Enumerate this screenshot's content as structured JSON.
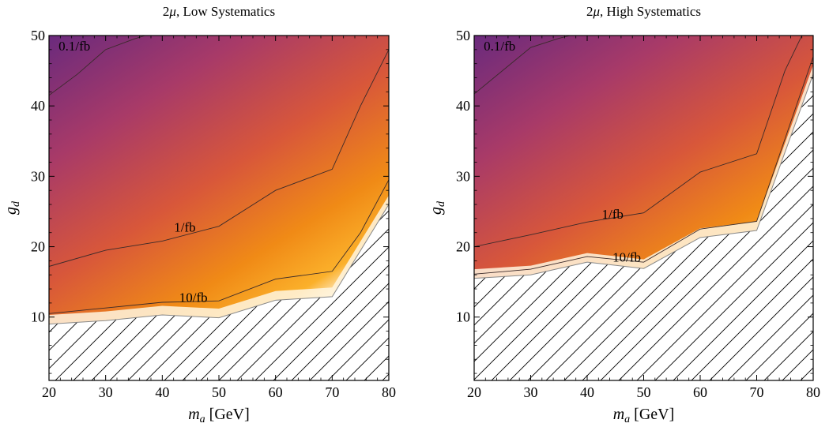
{
  "chart_data": [
    {
      "type": "heatmap",
      "title_base": "Low Systematics",
      "title_prefix": "2",
      "title_mu": "μ",
      "xlabel_var": "m",
      "xlabel_sub": "a",
      "xlabel_unit": "[GeV]",
      "ylabel_var": "g",
      "ylabel_sub": "d",
      "xlim": [
        20,
        80
      ],
      "ylim": [
        1,
        50
      ],
      "xticks": [
        20,
        30,
        40,
        50,
        60,
        70,
        80
      ],
      "yticks": [
        10,
        20,
        30,
        40,
        50
      ],
      "colors": [
        "#6a2a7d",
        "#a83a68",
        "#d8573a",
        "#f08a16",
        "#fbb02a",
        "#ffffff"
      ],
      "exclusion_boundary": [
        [
          20,
          9.0
        ],
        [
          30,
          9.5
        ],
        [
          40,
          10.3
        ],
        [
          50,
          9.9
        ],
        [
          60,
          12.4
        ],
        [
          70,
          12.9
        ],
        [
          80,
          26.0
        ]
      ],
      "contours": [
        {
          "label": "0.1/fb",
          "points": [
            [
              20,
              41.5
            ],
            [
              25,
              44.5
            ],
            [
              30,
              48
            ],
            [
              35,
              49.5
            ],
            [
              37,
              50
            ]
          ],
          "label_at": [
            24.5,
            48.3
          ]
        },
        {
          "label": "1/fb",
          "points": [
            [
              20,
              17.2
            ],
            [
              30,
              19.5
            ],
            [
              40,
              20.8
            ],
            [
              50,
              22.9
            ],
            [
              60,
              28
            ],
            [
              70,
              31
            ],
            [
              75,
              40
            ],
            [
              80,
              48
            ]
          ],
          "label_at": [
            44,
            22.6
          ]
        },
        {
          "label": "10/fb",
          "points": [
            [
              20,
              10.5
            ],
            [
              30,
              11.3
            ],
            [
              40,
              12.1
            ],
            [
              50,
              12.3
            ],
            [
              60,
              15.4
            ],
            [
              70,
              16.5
            ],
            [
              75,
              22
            ],
            [
              80,
              29.5
            ]
          ],
          "label_at": [
            45.5,
            12.6
          ]
        }
      ]
    },
    {
      "type": "heatmap",
      "title_base": "High Systematics",
      "title_prefix": "2",
      "title_mu": "μ",
      "xlabel_var": "m",
      "xlabel_sub": "a",
      "xlabel_unit": "[GeV]",
      "ylabel_var": "g",
      "ylabel_sub": "d",
      "xlim": [
        20,
        80
      ],
      "ylim": [
        1,
        50
      ],
      "xticks": [
        20,
        30,
        40,
        50,
        60,
        70,
        80
      ],
      "yticks": [
        10,
        20,
        30,
        40,
        50
      ],
      "colors": [
        "#6a2a7d",
        "#a83a68",
        "#d8573a",
        "#f08a16",
        "#fbb02a",
        "#ffffff"
      ],
      "exclusion_boundary": [
        [
          20,
          15.5
        ],
        [
          30,
          16.0
        ],
        [
          40,
          17.8
        ],
        [
          50,
          16.9
        ],
        [
          60,
          21.3
        ],
        [
          70,
          22.3
        ],
        [
          80,
          44.5
        ]
      ],
      "contours": [
        {
          "label": "0.1/fb",
          "points": [
            [
              20,
              41.7
            ],
            [
              25,
              45
            ],
            [
              30,
              48.3
            ],
            [
              35,
              49.6
            ],
            [
              37,
              50
            ]
          ],
          "label_at": [
            24.5,
            48.3
          ]
        },
        {
          "label": "1/fb",
          "points": [
            [
              20,
              20.0
            ],
            [
              30,
              21.7
            ],
            [
              40,
              23.5
            ],
            [
              50,
              24.8
            ],
            [
              60,
              30.6
            ],
            [
              70,
              33.2
            ],
            [
              75,
              45
            ],
            [
              78,
              50
            ]
          ],
          "label_at": [
            44.5,
            24.4
          ]
        },
        {
          "label": "10/fb",
          "points": [
            [
              20,
              16.1
            ],
            [
              30,
              16.8
            ],
            [
              40,
              18.6
            ],
            [
              50,
              17.8
            ],
            [
              60,
              22.5
            ],
            [
              70,
              23.6
            ],
            [
              80,
              47
            ]
          ],
          "label_at": [
            47,
            18.3
          ]
        }
      ]
    }
  ]
}
